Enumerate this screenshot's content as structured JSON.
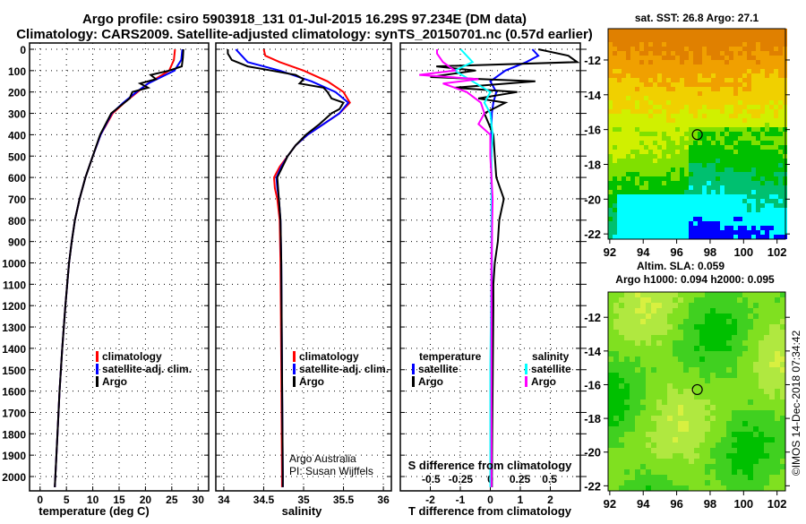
{
  "title_line1": "Argo profile: csiro 5903918_131 01-Jul-2015 16.29S 97.234E (DM data)",
  "title_line2": "Climatology: CARS2009. Satellite-adjusted climatology: synTS_20150701.nc (0.57d earlier)",
  "credit_argo": "Argo Australia",
  "credit_pi": "PI: Susan Wijffels",
  "side_stamp": "©IMOS 14-Dec-2018 07:34:42",
  "colors": {
    "climatology": "#ff0000",
    "satellite": "#0000ff",
    "argo": "#000000",
    "sal_satellite": "#00ffff",
    "sal_argo": "#ff00ff"
  },
  "chart_data": [
    {
      "type": "line",
      "id": "temperature",
      "xlabel": "temperature (deg C)",
      "xlim": [
        -2,
        32
      ],
      "ylim": [
        0,
        2050
      ],
      "xticks": [
        0,
        5,
        10,
        15,
        20,
        25,
        30
      ],
      "yticks": [
        0,
        100,
        200,
        300,
        400,
        500,
        600,
        700,
        800,
        900,
        1000,
        1100,
        1200,
        1300,
        1400,
        1500,
        1600,
        1700,
        1800,
        1900,
        2000
      ],
      "legend": [
        "climatology",
        "satellite-adj. clim.",
        "Argo"
      ],
      "series": [
        {
          "name": "climatology",
          "color": "#ff0000",
          "depth": [
            0,
            50,
            100,
            130,
            160,
            200,
            250,
            300,
            400,
            500,
            600,
            700,
            800,
            900,
            1000,
            1200,
            1400,
            1600,
            1800,
            2000,
            2050
          ],
          "values": [
            25.6,
            25.4,
            24.5,
            22.5,
            20.5,
            18.5,
            16,
            13.8,
            11.5,
            10,
            8.6,
            7.5,
            6.6,
            6,
            5.5,
            4.8,
            4.2,
            3.7,
            3.3,
            2.9,
            2.8
          ]
        },
        {
          "name": "satellite-adj. clim.",
          "color": "#0000ff",
          "depth": [
            0,
            50,
            100,
            130,
            160,
            200,
            250,
            300,
            400,
            500,
            600,
            700,
            800,
            900,
            1000,
            1200,
            1400,
            1600,
            1800,
            2000,
            2050
          ],
          "values": [
            27,
            26.8,
            25.5,
            23,
            20.5,
            18.3,
            15.8,
            13.6,
            11.5,
            10,
            8.6,
            7.5,
            6.6,
            6,
            5.5,
            4.8,
            4.2,
            3.7,
            3.3,
            2.9,
            2.8
          ]
        },
        {
          "name": "Argo",
          "color": "#000000",
          "depth": [
            0,
            40,
            80,
            100,
            120,
            140,
            160,
            180,
            200,
            230,
            270,
            300,
            400,
            500,
            600,
            700,
            800,
            900,
            1000,
            1200,
            1400,
            1600,
            1800,
            2000,
            2050
          ],
          "values": [
            27.2,
            27.1,
            26.9,
            24.5,
            21,
            22,
            19,
            20.5,
            17.5,
            17,
            15,
            13.5,
            11.4,
            10,
            8.6,
            7.5,
            6.6,
            6,
            5.5,
            4.8,
            4.2,
            3.7,
            3.3,
            2.9,
            2.8
          ]
        }
      ]
    },
    {
      "type": "line",
      "id": "salinity",
      "xlabel": "salinity",
      "xlim": [
        33.9,
        36.1
      ],
      "ylim": [
        0,
        2050
      ],
      "xticks": [
        34,
        34.5,
        35,
        35.5,
        36
      ],
      "legend": [
        "climatology",
        "satellite-adj. clim.",
        "Argo"
      ],
      "series": [
        {
          "name": "climatology",
          "color": "#ff0000",
          "depth": [
            0,
            30,
            60,
            100,
            150,
            200,
            250,
            300,
            350,
            400,
            450,
            500,
            550,
            600,
            650,
            700,
            800,
            1000,
            1500,
            2000,
            2050
          ],
          "values": [
            34.5,
            34.52,
            34.7,
            35.0,
            35.3,
            35.5,
            35.58,
            35.45,
            35.25,
            35.05,
            34.9,
            34.8,
            34.7,
            34.63,
            34.64,
            34.67,
            34.7,
            34.71,
            34.72,
            34.73,
            34.73
          ]
        },
        {
          "name": "satellite-adj. clim.",
          "color": "#0000ff",
          "depth": [
            0,
            20,
            60,
            100,
            150,
            200,
            250,
            300,
            350,
            400,
            450,
            500,
            550,
            600,
            650,
            700,
            800,
            1000,
            1500,
            2000,
            2050
          ],
          "values": [
            34.15,
            34.2,
            34.3,
            34.7,
            35.1,
            35.4,
            35.56,
            35.45,
            35.25,
            35.05,
            34.9,
            34.8,
            34.72,
            34.66,
            34.67,
            34.69,
            34.71,
            34.72,
            34.73,
            34.74,
            34.74
          ]
        },
        {
          "name": "Argo",
          "color": "#000000",
          "depth": [
            0,
            20,
            50,
            80,
            100,
            120,
            140,
            160,
            180,
            200,
            230,
            250,
            280,
            300,
            350,
            400,
            450,
            500,
            600,
            700,
            800,
            1000,
            1500,
            2000,
            2050
          ],
          "values": [
            34.05,
            34.05,
            34.1,
            34.3,
            34.6,
            34.9,
            35.0,
            34.95,
            35.25,
            35.3,
            35.35,
            35.5,
            35.45,
            35.35,
            35.2,
            35.03,
            34.9,
            34.8,
            34.67,
            34.69,
            34.71,
            34.72,
            34.73,
            34.74,
            34.74
          ]
        }
      ]
    },
    {
      "type": "line",
      "id": "differences",
      "xlabel": "T difference from climatology",
      "xlabel2": "S difference from climatology",
      "xlim": [
        -3,
        3
      ],
      "s_xlim": [
        -0.76,
        0.76
      ],
      "ylim": [
        0,
        2050
      ],
      "xticks": [
        -2,
        -1,
        0,
        1,
        2
      ],
      "s_xticks": [
        -0.5,
        -0.25,
        0,
        0.25,
        0.5
      ],
      "legend_t_title": "temperature",
      "legend_s_title": "salinity",
      "legend_t": [
        "satellite",
        "Argo"
      ],
      "legend_s": [
        "satellite",
        "Argo"
      ],
      "series": [
        {
          "name": "T satellite",
          "axis": "T",
          "color": "#0000ff",
          "depth": [
            0,
            30,
            60,
            100,
            150,
            200,
            250,
            300,
            400,
            500,
            700,
            1000,
            2000,
            2050
          ],
          "values": [
            1.4,
            1.6,
            1.2,
            0.5,
            0,
            0.2,
            0.1,
            0.05,
            0.03,
            0.02,
            0.05,
            0.05,
            0.05,
            0.05
          ]
        },
        {
          "name": "T Argo",
          "axis": "T",
          "color": "#000000",
          "depth": [
            0,
            30,
            60,
            80,
            100,
            130,
            150,
            180,
            200,
            230,
            250,
            300,
            400,
            500,
            600,
            700,
            800,
            900,
            1000,
            1100,
            1200,
            2000,
            2050
          ],
          "values": [
            1.6,
            2.6,
            2.9,
            -1.8,
            -0.5,
            -2,
            1.5,
            -1.2,
            0.9,
            -0.4,
            0.5,
            -0.2,
            0.1,
            0.15,
            0.2,
            0.45,
            0.3,
            0.25,
            0.15,
            0.1,
            0.1,
            0.05,
            0.05
          ]
        },
        {
          "name": "S satellite",
          "axis": "S",
          "color": "#00ffff",
          "depth": [
            0,
            30,
            60,
            100,
            150,
            200,
            250,
            300,
            400,
            500,
            700,
            1000,
            1500,
            2000,
            2050
          ],
          "values": [
            -0.25,
            -0.2,
            -0.15,
            -0.3,
            -0.15,
            0,
            -0.05,
            0,
            0.02,
            0.01,
            0.01,
            0.01,
            0,
            0,
            0
          ]
        },
        {
          "name": "S Argo",
          "axis": "S",
          "color": "#ff00ff",
          "depth": [
            0,
            20,
            60,
            100,
            120,
            140,
            160,
            200,
            250,
            300,
            350,
            400,
            500,
            700,
            1000,
            2000,
            2050
          ],
          "values": [
            -0.45,
            -0.45,
            -0.4,
            -0.3,
            -0.6,
            -0.1,
            -0.4,
            -0.2,
            -0.08,
            -0.05,
            -0.1,
            0,
            0,
            0.02,
            0.01,
            0.01,
            0.01
          ]
        }
      ]
    },
    {
      "type": "heatmap",
      "id": "sst-map",
      "title": "sat. SST: 26.8 Argo: 27.1",
      "xticks": [
        92,
        94,
        96,
        98,
        100,
        102
      ],
      "yticks": [
        -12,
        -14,
        -16,
        -18,
        -20,
        -22
      ],
      "xlim": [
        91.9,
        102.5
      ],
      "ylim": [
        -22.3,
        -10.2
      ],
      "argo_position": [
        97.234,
        -16.29
      ],
      "palette": [
        "#0000ff",
        "#00ffff",
        "#00c070",
        "#00c000",
        "#80e000",
        "#d0f000",
        "#f0d000",
        "#f0a000",
        "#e08000"
      ]
    },
    {
      "type": "heatmap",
      "id": "sla-map",
      "title_line1": "Altim. SLA: 0.059",
      "title_line2": "Argo h1000: 0.094 h2000: 0.095",
      "xticks": [
        92,
        94,
        96,
        98,
        100,
        102
      ],
      "yticks": [
        -12,
        -14,
        -16,
        -18,
        -20,
        -22
      ],
      "xlim": [
        91.9,
        102.5
      ],
      "ylim": [
        -22.3,
        -10.5
      ],
      "argo_position": [
        97.234,
        -16.29
      ],
      "palette": [
        "#00c000",
        "#40d020",
        "#80e020",
        "#b0e840",
        "#d8f040"
      ]
    }
  ]
}
